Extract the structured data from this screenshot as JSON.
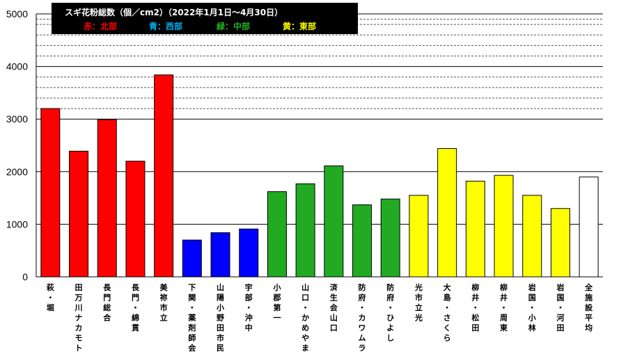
{
  "chart_data": {
    "type": "bar",
    "title": "スギ花粉総数（個／cm2）（2022年1月1日～4月30日）",
    "legend": [
      {
        "text": "赤：北部",
        "color": "#ff0000"
      },
      {
        "text": "青：西部",
        "color": "#00b0f0"
      },
      {
        "text": "緑：中部",
        "color": "#22b022"
      },
      {
        "text": "黄：東部",
        "color": "#ffff00"
      }
    ],
    "xlabel": "",
    "ylabel": "",
    "ylim": [
      0,
      5000
    ],
    "yticks": [
      "0",
      "1000",
      "2000",
      "3000",
      "4000",
      "5000"
    ],
    "grid": "horizontal dashed lines every 200 above 4000 and between 3000-4000",
    "categories": [
      "萩・堀",
      "田万川ナカモト",
      "長門総合",
      "長門・綿貫",
      "美祢市立",
      "下関・薬剤師会",
      "山陽小野田市民",
      "宇部・沖中",
      "小郡第一",
      "山口・かめやま",
      "済生会山口",
      "防府・カワムラ",
      "防府・ひよし",
      "光市立光",
      "大島・さくら",
      "柳井・松田",
      "柳井・周東",
      "岩国・小林",
      "岩国・河田",
      "全施設平均"
    ],
    "values": [
      3200,
      2390,
      2990,
      2200,
      3840,
      700,
      840,
      910,
      1620,
      1770,
      2110,
      1370,
      1480,
      1550,
      2440,
      1820,
      1930,
      1550,
      1300,
      1900
    ],
    "colors": [
      "#ff0000",
      "#ff0000",
      "#ff0000",
      "#ff0000",
      "#ff0000",
      "#0000ff",
      "#0000ff",
      "#0000ff",
      "#22aa22",
      "#22aa22",
      "#22aa22",
      "#22aa22",
      "#22aa22",
      "#ffff00",
      "#ffff00",
      "#ffff00",
      "#ffff00",
      "#ffff00",
      "#ffff00",
      "#ffffff"
    ]
  }
}
